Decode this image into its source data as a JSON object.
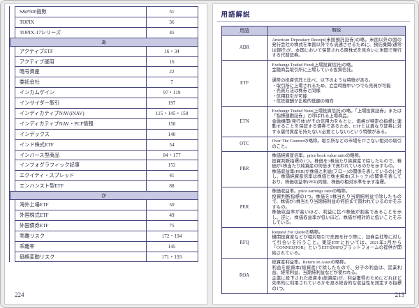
{
  "colors": {
    "border": "#45467c",
    "band_bg": "#c8c9e2",
    "text": "#28283f",
    "title": "#2b2b66",
    "page_bg": "#ffffff",
    "backdrop": "#ececec"
  },
  "left_page": {
    "page_number": "224",
    "continued_rows": [
      {
        "term": "S&P500指数",
        "page": "51"
      },
      {
        "term": "TOPIX",
        "page": "36"
      },
      {
        "term": "TOPIX-17シリーズ",
        "page": "45"
      }
    ],
    "sections": [
      {
        "header": "あ",
        "rows": [
          {
            "term": "アクティブETF",
            "page": "16・34"
          },
          {
            "term": "アクティブ運用",
            "page": "16"
          },
          {
            "term": "暗号資産",
            "page": "22"
          },
          {
            "term": "委託会社",
            "page": "7"
          },
          {
            "term": "インカムゲイン",
            "page": "97・119"
          },
          {
            "term": "インサイダー取引",
            "page": "197"
          },
          {
            "term": "インディカティブNAV(iNAV)",
            "page": "115・145・158"
          },
          {
            "term": "インディカティブNAV・PCF情報",
            "page": "158"
          },
          {
            "term": "インデックス",
            "page": "140"
          },
          {
            "term": "インド株式ETF",
            "page": "54"
          },
          {
            "term": "インバース型商品",
            "page": "84・177"
          },
          {
            "term": "インフォグラフィック記事",
            "page": "152"
          },
          {
            "term": "エクイティ・スプレッド",
            "page": "41"
          },
          {
            "term": "エンハンスト型ETF",
            "page": "88"
          }
        ]
      },
      {
        "header": "か",
        "rows": [
          {
            "term": "海外上場ETF",
            "page": "50"
          },
          {
            "term": "外国株式ETF",
            "page": "49"
          },
          {
            "term": "外国債券ETF",
            "page": "75"
          },
          {
            "term": "乖離リスク",
            "page": "172・194"
          },
          {
            "term": "乖離率",
            "page": "145"
          },
          {
            "term": "価格変動リスク",
            "page": "171・193"
          }
        ]
      }
    ]
  },
  "right_page": {
    "title": "用語解説",
    "page_number": "213",
    "table": {
      "term_header": "用語",
      "desc_header": "解説",
      "rows": [
        {
          "term": "ADR",
          "description": "American Depositary Receipt(米国預託証券)の略。米国以外の国の発行会社の株式を本国以外でも流通させるために、預託機関(通常は銀行)が、本国において保管される原株式を見合いに米国で発行する代替証券。"
        },
        {
          "term": "ETF",
          "description": "Exchange Traded Fund(上場投資信託)の略。\n金融商品取引所に上場している投資信託。\n\n通常の投資信託と比べ、以下のような特徴がある。\n・取引所に上場されるため、立会時間中いつでも売買が可能\n・売買方法は株券と同様\n・信用取引が可能\n・信託報酬が比較的低額の傾向"
        },
        {
          "term": "ETN",
          "description": "Exchange Traded Note(上場投資信託)の略。「上場投資証券」または「指標連動証券」と呼ばれる上場商品。\n金融機関(発行体)がその信用力をもとに、価格が特定の指標に連動することを保証する債券であるため、ETFとは異なり証券に対する裏付資産を持たない(必要としない)という特徴がある。"
        },
        {
          "term": "OTC",
          "description": "Over The Counterの略称。取引所などの市場を介さない相対の取引のこと。"
        },
        {
          "term": "PBR",
          "description": "株価純資産倍率。price book value ratioの略称。\n投資判断指標の1つ。株価を1株当たり純資産で除したもので、株価が1株当たり純資産の何倍まで買われているのかを示すもの。\n株価収益率(PER)が株価と利益(フロー)の関係を表しているのに対し、株価純資産倍率は株価と株主資本(ストック)の関係を表しており、株価収益率(PER)同様、株価の相対水準を示す指標。"
        },
        {
          "term": "PER",
          "description": "株価収益率。price earnings ratioの略称。\n投資判断指標の1つ。株価を1株当たり当期純利益で除したもので、株価が1株当たり当期純利益の何倍まで買われているのかを示すもの。\n株価収益率が高いほど、利益に比べ株価が割高であることを示し、逆に、株価収益率が低いほど、株価が相対的に低いことを示している。"
        },
        {
          "term": "RFQ",
          "description": "Request For Quoteの略称。\n機関投資家などが相対取引で売買を行う際に、証券会社等に対して引合いを行うこと。東証ETFにおいては、2021年2月から「CONNEQTOR」というETFのRFQプラットフォームの提供が開始されている。"
        },
        {
          "term": "ROA",
          "description": "総資産利益率。Return on Assetの略称。\n利益を総資本(総資産)で除したもので、分子の利益は、営業利益、経常利益、当期純利益などが使われる。\n企業に投下された総資本(総資産)が、利益獲得のためにどれほど効率的に利用されているかを見る総合的な収益性を測定する指標の1つ。"
        }
      ]
    }
  }
}
